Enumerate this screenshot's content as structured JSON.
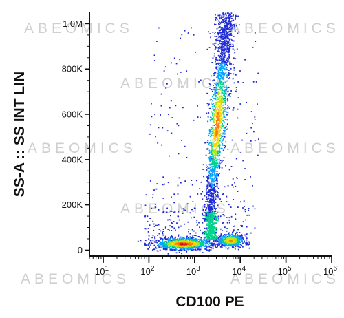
{
  "watermark": "ABEOMICS",
  "chart_data": {
    "type": "scatter",
    "subtype": "flow-cytometry density dot plot",
    "xlabel": "CD100 PE",
    "ylabel": "SS-A :: SS INT LIN",
    "x_scale": "log",
    "xlim": [
      5,
      1000000
    ],
    "ylim": [
      -20000,
      1050000
    ],
    "x_ticks": [
      {
        "value": 10,
        "label_base": "10",
        "label_exp": "1"
      },
      {
        "value": 100,
        "label_base": "10",
        "label_exp": "2"
      },
      {
        "value": 1000,
        "label_base": "10",
        "label_exp": "3"
      },
      {
        "value": 10000,
        "label_base": "10",
        "label_exp": "4"
      },
      {
        "value": 100000,
        "label_base": "10",
        "label_exp": "5"
      },
      {
        "value": 1000000,
        "label_base": "10",
        "label_exp": "6"
      }
    ],
    "y_ticks": [
      {
        "value": 0,
        "label": "0"
      },
      {
        "value": 200000,
        "label": "200K"
      },
      {
        "value": 400000,
        "label": "400K"
      },
      {
        "value": 600000,
        "label": "600K"
      },
      {
        "value": 800000,
        "label": "800K"
      },
      {
        "value": 1000000,
        "label": "1,0M"
      }
    ],
    "color_scale": [
      "#1f2bd6",
      "#00a6ff",
      "#00d48a",
      "#a8e61c",
      "#ffd400",
      "#ff7a00",
      "#e0101a"
    ],
    "populations": [
      {
        "name": "low-side-scatter cluster",
        "cx_log": 2.75,
        "cy": 30000,
        "sx_log": 0.3,
        "sy": 13000,
        "n": 1100,
        "peak_density": 1.0
      },
      {
        "name": "CD100 bright low-SS cluster",
        "cx_log": 3.78,
        "cy": 45000,
        "sx_log": 0.14,
        "sy": 14000,
        "n": 500,
        "peak_density": 0.8
      },
      {
        "name": "high-side-scatter population",
        "x_log_at_y0": 3.3,
        "x_log_at_ymax": 3.7,
        "y_range": [
          130000,
          1050000
        ],
        "peak_y": 560000,
        "sx_log": 0.07,
        "n": 1900,
        "peak_density": 0.85
      },
      {
        "name": "scattered events",
        "n": 500,
        "peak_density": 0.0
      }
    ]
  }
}
